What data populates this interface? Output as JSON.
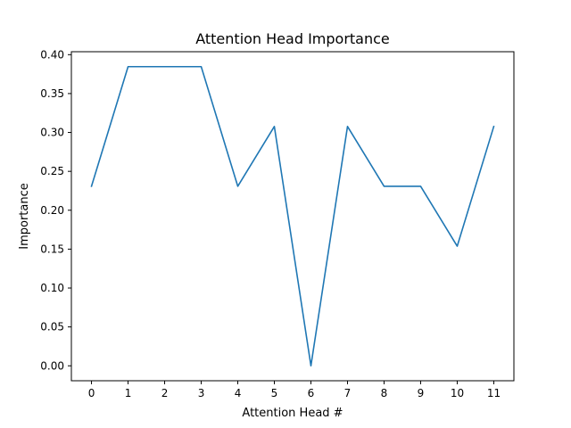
{
  "chart_data": {
    "type": "line",
    "title": "Attention Head Importance",
    "xlabel": "Attention Head #",
    "ylabel": "Importance",
    "x": [
      0,
      1,
      2,
      3,
      4,
      5,
      6,
      7,
      8,
      9,
      10,
      11
    ],
    "x_tick_labels": [
      "0",
      "1",
      "2",
      "3",
      "4",
      "5",
      "6",
      "7",
      "8",
      "9",
      "10",
      "11"
    ],
    "y_tick_values": [
      0.0,
      0.05,
      0.1,
      0.15,
      0.2,
      0.25,
      0.3,
      0.35,
      0.4
    ],
    "y_tick_labels": [
      "0.00",
      "0.05",
      "0.10",
      "0.15",
      "0.20",
      "0.25",
      "0.30",
      "0.35",
      "0.40"
    ],
    "series": [
      {
        "color": "#1f77b4",
        "values": [
          0.2308,
          0.3846,
          0.3846,
          0.3846,
          0.2308,
          0.3077,
          0.0,
          0.3077,
          0.2308,
          0.2308,
          0.1538,
          0.3077
        ]
      }
    ],
    "xlim": [
      -0.55,
      11.55
    ],
    "ylim": [
      -0.0192,
      0.4038
    ],
    "grid": false,
    "legend": "none"
  }
}
